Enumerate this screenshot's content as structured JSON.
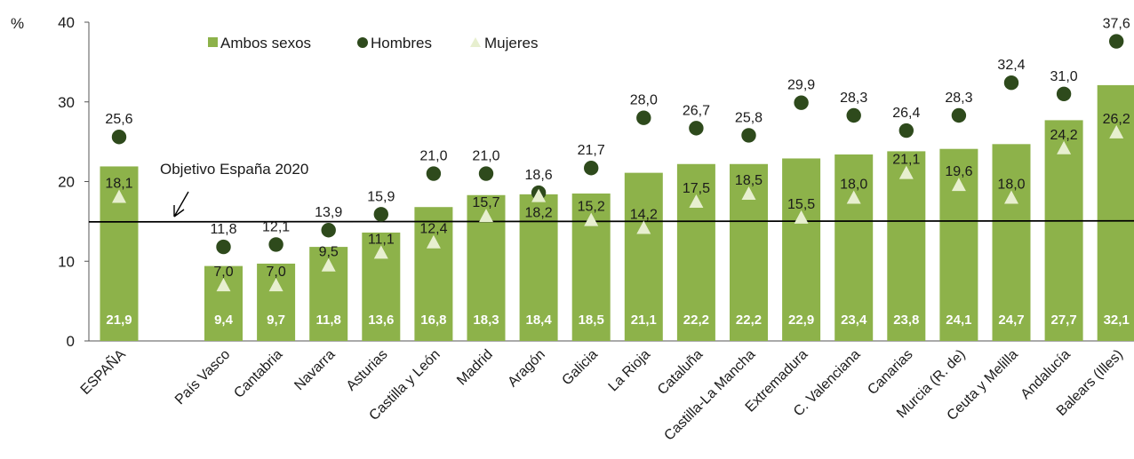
{
  "chart_data": {
    "type": "bar",
    "ylabel": "%",
    "ylim": [
      0,
      40
    ],
    "yticks": [
      "0",
      "10",
      "20",
      "30",
      "40"
    ],
    "categories": [
      "ESPAÑA",
      "País Vasco",
      "Cantabria",
      "Navarra",
      "Asturias",
      "Castilla y León",
      "Madrid",
      "Aragón",
      "Galicia",
      "La Rioja",
      "Cataluña",
      "Castilla-La Mancha",
      "Extremadura",
      "C. Valenciana",
      "Canarias",
      "Murcia  (R. de)",
      "Ceuta y Melilla",
      "Andalucía",
      "Balears (Illes)"
    ],
    "series": [
      {
        "name": "Ambos sexos",
        "values": [
          21.9,
          9.4,
          9.7,
          11.8,
          13.6,
          16.8,
          18.3,
          18.4,
          18.5,
          21.1,
          22.2,
          22.2,
          22.9,
          23.4,
          23.8,
          24.1,
          24.7,
          27.7,
          32.1
        ]
      },
      {
        "name": "Hombres",
        "values": [
          25.6,
          11.8,
          12.1,
          13.9,
          15.9,
          21.0,
          21.0,
          18.6,
          21.7,
          28.0,
          26.7,
          25.8,
          29.9,
          28.3,
          26.4,
          28.3,
          32.4,
          31.0,
          37.6
        ]
      },
      {
        "name": "Mujeres",
        "values": [
          18.1,
          7.0,
          7.0,
          9.5,
          11.1,
          12.4,
          15.7,
          18.2,
          15.2,
          14.2,
          17.5,
          18.5,
          15.5,
          18.0,
          21.1,
          19.6,
          18.0,
          24.2,
          26.2
        ]
      }
    ],
    "value_labels": {
      "Ambos sexos": [
        "21,9",
        "9,4",
        "9,7",
        "11,8",
        "13,6",
        "16,8",
        "18,3",
        "18,4",
        "18,5",
        "21,1",
        "22,2",
        "22,2",
        "22,9",
        "23,4",
        "23,8",
        "24,1",
        "24,7",
        "27,7",
        "32,1"
      ],
      "Hombres": [
        "25,6",
        "11,8",
        "12,1",
        "13,9",
        "15,9",
        "21,0",
        "21,0",
        "18,6",
        "21,7",
        "28,0",
        "26,7",
        "25,8",
        "29,9",
        "28,3",
        "26,4",
        "28,3",
        "32,4",
        "31,0",
        "37,6"
      ],
      "Mujeres": [
        "18,1",
        "7,0",
        "7,0",
        "9,5",
        "11,1",
        "12,4",
        "15,7",
        "18,2",
        "15,2",
        "14,2",
        "17,5",
        "18,5",
        "15,5",
        "18,0",
        "21,1",
        "19,6",
        "18,0",
        "24,2",
        "26,2"
      ]
    },
    "reference_line": {
      "label": "Objetivo España 2020",
      "value": 15.0
    },
    "legend": {
      "placement": "top-left",
      "entries": [
        "Ambos sexos",
        "Hombres",
        "Mujeres"
      ]
    },
    "colors": {
      "bar": "#8db24a",
      "hombres": "#2e4a1c",
      "mujeres": "#e7efcf",
      "line": "#000000"
    },
    "grid": false
  }
}
